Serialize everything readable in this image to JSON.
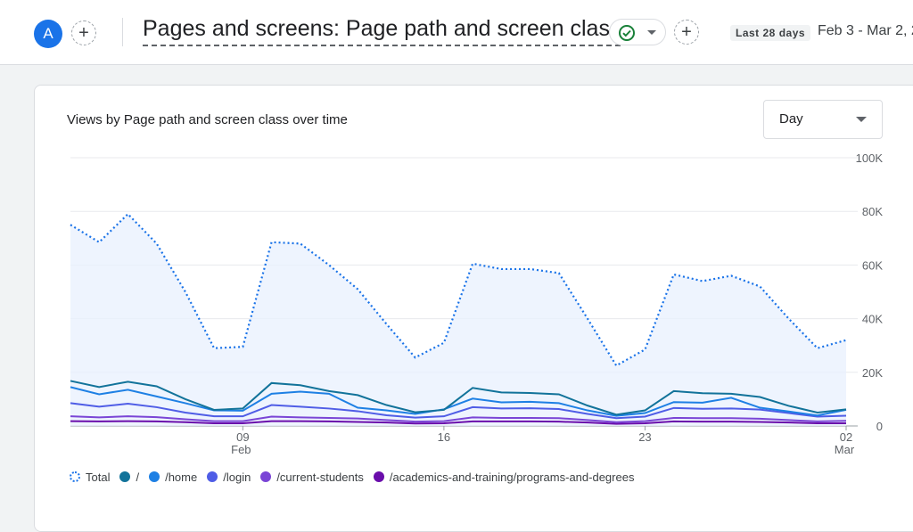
{
  "header": {
    "avatar_letter": "A",
    "add_icon_glyph": "+",
    "page_title": "Pages and screens: Page path and screen class",
    "status_icon": "check-circle-icon",
    "date_label": "Last 28 days",
    "date_range": "Feb 3 - Mar 2, 2"
  },
  "card": {
    "title": "Views by Page path and screen class over time",
    "interval_select": "Day"
  },
  "colors": {
    "total": "#1a73e8",
    "slash": "#12739a",
    "home": "#1e80e4",
    "login": "#4f5de6",
    "current_students": "#7a45d6",
    "academics": "#6a0dab",
    "grid": "#e8eaed",
    "fill": "#e8f0fe"
  },
  "chart_data": {
    "type": "line",
    "x": [
      "Feb 3",
      "Feb 4",
      "Feb 5",
      "Feb 6",
      "Feb 7",
      "Feb 8",
      "Feb 9",
      "Feb 10",
      "Feb 11",
      "Feb 12",
      "Feb 13",
      "Feb 14",
      "Feb 15",
      "Feb 16",
      "Feb 17",
      "Feb 18",
      "Feb 19",
      "Feb 20",
      "Feb 21",
      "Feb 22",
      "Feb 23",
      "Feb 24",
      "Feb 25",
      "Feb 26",
      "Feb 27",
      "Feb 28",
      "Mar 1",
      "Mar 2"
    ],
    "x_ticks": [
      {
        "index": 6,
        "label": "09",
        "sublabel": "Feb"
      },
      {
        "index": 13,
        "label": "16",
        "sublabel": ""
      },
      {
        "index": 20,
        "label": "23",
        "sublabel": ""
      },
      {
        "index": 27,
        "label": "02",
        "sublabel": "Mar"
      }
    ],
    "ylim": [
      0,
      100000
    ],
    "y_ticks": [
      "0",
      "20K",
      "40K",
      "60K",
      "80K",
      "100K"
    ],
    "y_tick_values": [
      0,
      20000,
      40000,
      60000,
      80000,
      100000
    ],
    "grid": true,
    "legend_position": "bottom",
    "series": [
      {
        "name": "Total",
        "style": "dotted",
        "values": [
          75000,
          68500,
          79000,
          68000,
          50000,
          29000,
          29500,
          68500,
          68000,
          60000,
          51000,
          38000,
          25500,
          31000,
          60500,
          58500,
          58500,
          57000,
          40000,
          22500,
          28500,
          56500,
          54000,
          56000,
          52000,
          40000,
          29000,
          32000
        ]
      },
      {
        "name": "/",
        "values": [
          16800,
          14500,
          16500,
          14800,
          10000,
          6000,
          6500,
          16000,
          15200,
          13000,
          11500,
          7800,
          5100,
          6000,
          14200,
          12500,
          12300,
          11800,
          7600,
          4200,
          5800,
          13000,
          12200,
          12000,
          10800,
          7500,
          5000,
          6200
        ]
      },
      {
        "name": "/home",
        "values": [
          14500,
          11800,
          13500,
          11000,
          8500,
          5800,
          5700,
          12000,
          12800,
          12000,
          6800,
          5800,
          4500,
          6200,
          10200,
          8800,
          9000,
          8500,
          5800,
          3800,
          4800,
          8900,
          8700,
          10500,
          6800,
          5400,
          3900,
          6000
        ]
      },
      {
        "name": "/login",
        "values": [
          8500,
          7200,
          8300,
          7000,
          5000,
          3600,
          3600,
          7800,
          7200,
          6500,
          5500,
          4000,
          3100,
          3600,
          7000,
          6500,
          6600,
          6300,
          4500,
          2900,
          3500,
          6700,
          6400,
          6500,
          6100,
          4800,
          3500,
          3800
        ]
      },
      {
        "name": "/current-students",
        "values": [
          3600,
          3200,
          3600,
          3300,
          2500,
          1800,
          1800,
          3500,
          3200,
          3000,
          2800,
          2200,
          1600,
          1800,
          3200,
          3000,
          3000,
          2900,
          2200,
          1400,
          1800,
          3000,
          2900,
          2900,
          2700,
          2200,
          1700,
          1900
        ]
      },
      {
        "name": "/academics-and-training/programs-and-degrees",
        "values": [
          1800,
          1700,
          1800,
          1700,
          1400,
          1000,
          1000,
          1800,
          1800,
          1700,
          1500,
          1300,
          900,
          1000,
          1700,
          1700,
          1700,
          1600,
          1300,
          800,
          1000,
          1700,
          1600,
          1600,
          1500,
          1300,
          1000,
          1000
        ]
      }
    ]
  }
}
